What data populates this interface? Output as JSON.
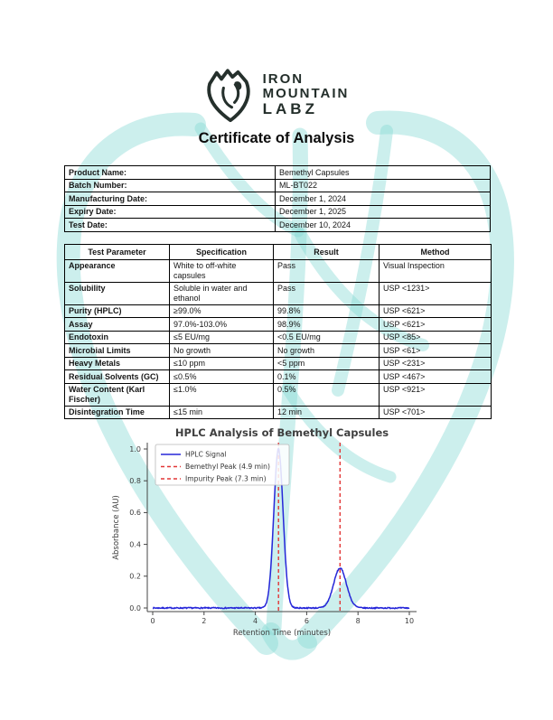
{
  "page": {
    "title": "Certificate of Analysis"
  },
  "logo": {
    "icon": "mountain-deer-shield",
    "line1": "IRON",
    "line2": "MOUNTAIN",
    "line3": "LABZ",
    "color": "#232e2a"
  },
  "watermark": {
    "description": "large light-teal heart with antler branches (brand motif)",
    "color": "#86d8d4"
  },
  "product_info": {
    "rows": [
      {
        "label": "Product Name:",
        "value": "Bemethyl Capsules"
      },
      {
        "label": "Batch Number:",
        "value": "ML-BT022"
      },
      {
        "label": "Manufacturing Date:",
        "value": "December 1, 2024"
      },
      {
        "label": "Expiry Date:",
        "value": "December 1, 2025"
      },
      {
        "label": "Test Date:",
        "value": "December 10, 2024"
      }
    ]
  },
  "results": {
    "headers": [
      "Test Parameter",
      "Specification",
      "Result",
      "Method"
    ],
    "rows": [
      [
        "Appearance",
        "White to off-white capsules",
        "Pass",
        "Visual Inspection"
      ],
      [
        "Solubility",
        "Soluble in water and ethanol",
        "Pass",
        "USP <1231>"
      ],
      [
        "Purity (HPLC)",
        "≥99.0%",
        "99.8%",
        "USP <621>"
      ],
      [
        "Assay",
        "97.0%-103.0%",
        "98.9%",
        "USP <621>"
      ],
      [
        "Endotoxin",
        "≤5 EU/mg",
        "<0.5 EU/mg",
        "USP <85>"
      ],
      [
        "Microbial Limits",
        "No growth",
        "No growth",
        "USP <61>"
      ],
      [
        "Heavy Metals",
        "≤10 ppm",
        "<5 ppm",
        "USP <231>"
      ],
      [
        "Residual Solvents (GC)",
        "≤0.5%",
        "0.1%",
        "USP <467>"
      ],
      [
        "Water Content (Karl Fischer)",
        "≤1.0%",
        "0.5%",
        "USP <921>"
      ],
      [
        "Disintegration Time",
        "≤15 min",
        "12 min",
        "USP <701>"
      ]
    ]
  },
  "chart_data": {
    "type": "line",
    "title": "HPLC Analysis of Bemethyl Capsules",
    "xlabel": "Retention Time (minutes)",
    "ylabel": "Absorbance (AU)",
    "xlim": [
      0,
      10
    ],
    "ylim": [
      0,
      1.05
    ],
    "xticks": [
      "0",
      "2",
      "4",
      "6",
      "8",
      "10"
    ],
    "yticks": [
      "0.0",
      "0.2",
      "0.4",
      "0.6",
      "0.8",
      "1.0"
    ],
    "grid": false,
    "legend_position": "upper left",
    "series": [
      {
        "name": "HPLC Signal",
        "color": "#2626d9",
        "baseline_au": 0.0,
        "noise_amplitude_au": 0.004,
        "peaks": [
          {
            "center_min": 4.9,
            "height_au": 1.0,
            "sigma_min": 0.18
          },
          {
            "center_min": 7.3,
            "height_au": 0.25,
            "sigma_min": 0.25
          }
        ]
      }
    ],
    "vlines": [
      {
        "x": 4.9,
        "label": "Bemethyl Peak (4.9 min)",
        "color": "#e23636",
        "style": "dashed"
      },
      {
        "x": 7.3,
        "label": "Impurity Peak (7.3 min)",
        "color": "#e23636",
        "style": "dashed"
      }
    ],
    "legend": [
      {
        "label": "HPLC Signal",
        "color": "#2626d9",
        "dash": false
      },
      {
        "label": "Bemethyl Peak (4.9 min)",
        "color": "#e23636",
        "dash": true
      },
      {
        "label": "Impurity Peak (7.3 min)",
        "color": "#e23636",
        "dash": true
      }
    ],
    "colors": {
      "axis": "#444444",
      "text": "#3d3d3d"
    }
  }
}
